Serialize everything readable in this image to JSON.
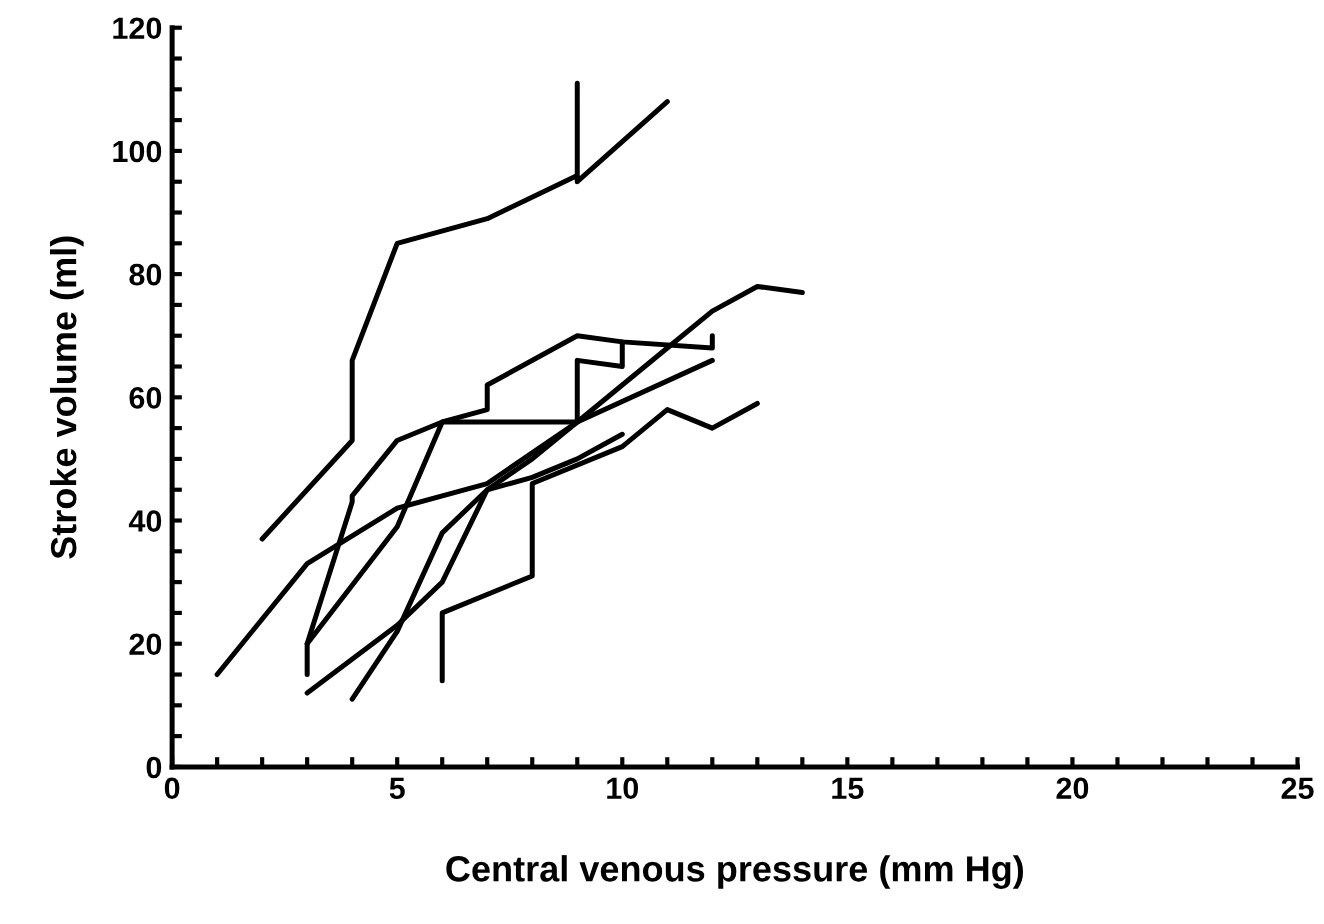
{
  "chart_data": {
    "type": "line",
    "xlabel": "Central venous pressure (mm Hg)",
    "ylabel": "Stroke volume (ml)",
    "xlim": [
      0,
      25
    ],
    "ylim": [
      0,
      120
    ],
    "xticks": [
      0,
      {
        "value": 1,
        "label": null
      },
      {
        "value": 2,
        "label": null
      },
      {
        "value": 3,
        "label": null
      },
      {
        "value": 4,
        "label": null
      },
      5,
      {
        "value": 6,
        "label": null
      },
      {
        "value": 7,
        "label": null
      },
      {
        "value": 8,
        "label": null
      },
      {
        "value": 9,
        "label": null
      },
      10,
      {
        "value": 11,
        "label": null
      },
      {
        "value": 12,
        "label": null
      },
      {
        "value": 13,
        "label": null
      },
      {
        "value": 14,
        "label": null
      },
      15,
      {
        "value": 16,
        "label": null
      },
      {
        "value": 17,
        "label": null
      },
      {
        "value": 18,
        "label": null
      },
      {
        "value": 19,
        "label": null
      },
      20,
      {
        "value": 21,
        "label": null
      },
      {
        "value": 22,
        "label": null
      },
      {
        "value": 23,
        "label": null
      },
      {
        "value": 24,
        "label": null
      },
      25
    ],
    "yticks": [
      0,
      {
        "value": 5,
        "label": null
      },
      {
        "value": 10,
        "label": null
      },
      {
        "value": 15,
        "label": null
      },
      20,
      {
        "value": 25,
        "label": null
      },
      {
        "value": 30,
        "label": null
      },
      {
        "value": 35,
        "label": null
      },
      40,
      {
        "value": 45,
        "label": null
      },
      {
        "value": 50,
        "label": null
      },
      {
        "value": 55,
        "label": null
      },
      60,
      {
        "value": 65,
        "label": null
      },
      {
        "value": 70,
        "label": null
      },
      {
        "value": 75,
        "label": null
      },
      80,
      {
        "value": 85,
        "label": null
      },
      {
        "value": 90,
        "label": null
      },
      {
        "value": 95,
        "label": null
      },
      100,
      {
        "value": 105,
        "label": null
      },
      {
        "value": 110,
        "label": null
      },
      {
        "value": 115,
        "label": null
      },
      120
    ],
    "grid": false,
    "legend": false,
    "marker": "none",
    "line_style": "solid",
    "series": [
      {
        "color": "#000000",
        "x": [
          2,
          4,
          4,
          5,
          7,
          9,
          9,
          9,
          11
        ],
        "values": [
          37,
          53,
          66,
          85,
          89,
          96,
          111,
          95,
          108
        ]
      },
      {
        "color": "#000000",
        "x": [
          1,
          3,
          5,
          7,
          9,
          11,
          12,
          13,
          14
        ],
        "values": [
          15,
          33,
          42,
          46,
          56,
          68,
          74,
          78,
          77
        ]
      },
      {
        "color": "#000000",
        "x": [
          3,
          3,
          4,
          4,
          5,
          6,
          7,
          7,
          9,
          10,
          12,
          12
        ],
        "values": [
          15,
          20,
          43,
          44,
          53,
          56,
          58,
          62,
          70,
          69,
          68,
          70
        ]
      },
      {
        "color": "#000000",
        "x": [
          3,
          5,
          6,
          9,
          9,
          10,
          10
        ],
        "values": [
          20,
          39,
          56,
          56,
          66,
          65,
          69
        ]
      },
      {
        "color": "#000000",
        "x": [
          3,
          5,
          6,
          7,
          8,
          9,
          12
        ],
        "values": [
          12,
          23,
          30,
          45,
          50,
          56,
          66
        ]
      },
      {
        "color": "#000000",
        "x": [
          4,
          5,
          6,
          7,
          8,
          9,
          10
        ],
        "values": [
          11,
          22,
          38,
          45,
          47,
          50,
          54
        ]
      },
      {
        "color": "#000000",
        "x": [
          6,
          6,
          8,
          8,
          10,
          11,
          12,
          13
        ],
        "values": [
          14,
          25,
          31,
          46,
          52,
          58,
          55,
          59
        ]
      }
    ]
  }
}
